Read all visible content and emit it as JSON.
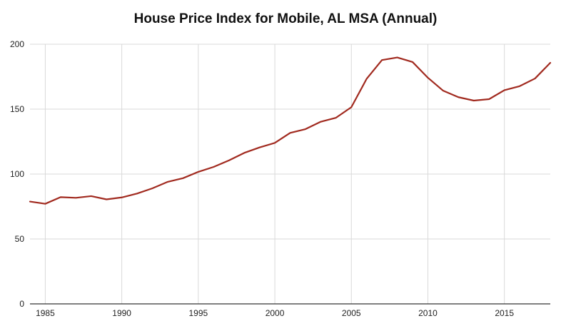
{
  "chart_data": {
    "type": "line",
    "title": "House Price Index for Mobile, AL MSA (Annual)",
    "xlabel": "",
    "ylabel": "",
    "xlim": [
      1984,
      2018
    ],
    "ylim": [
      0,
      200
    ],
    "x_ticks": [
      1985,
      1990,
      1995,
      2000,
      2005,
      2010,
      2015
    ],
    "y_ticks": [
      0,
      50,
      100,
      150,
      200
    ],
    "grid": true,
    "legend": "none",
    "colors": {
      "line": "#a12a1f",
      "grid": "#d9d9d9",
      "axis": "#333333",
      "text": "#222222"
    },
    "series": [
      {
        "x": [
          1984,
          1985,
          1986,
          1987,
          1988,
          1989,
          1990,
          1991,
          1992,
          1993,
          1994,
          1995,
          1996,
          1997,
          1998,
          1999,
          2000,
          2001,
          2002,
          2003,
          2004,
          2005,
          2006,
          2007,
          2008,
          2009,
          2010,
          2011,
          2012,
          2013,
          2014,
          2015,
          2016,
          2017,
          2018
        ],
        "y": [
          78.8,
          77.1,
          82.2,
          81.7,
          83.0,
          80.5,
          82.0,
          85.0,
          89.0,
          94.0,
          96.8,
          101.7,
          105.5,
          110.5,
          116.3,
          120.5,
          124.0,
          131.7,
          134.6,
          140.3,
          143.4,
          151.5,
          173.4,
          187.8,
          189.8,
          186.3,
          174.2,
          164.2,
          159.2,
          156.6,
          157.7,
          164.6,
          167.7,
          173.6,
          185.7
        ]
      }
    ]
  }
}
